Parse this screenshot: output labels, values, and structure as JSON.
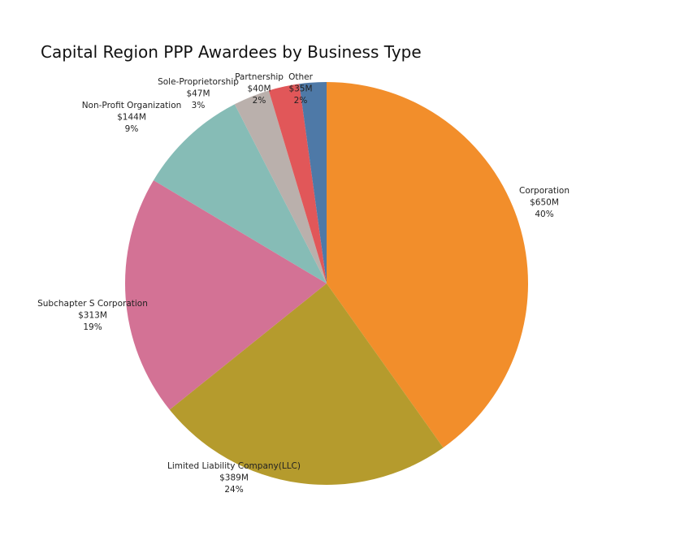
{
  "chart_data": {
    "type": "pie",
    "title": "Capital Region PPP Awardees by Business Type",
    "slices": [
      {
        "name": "Corporation",
        "amount": "$650M",
        "pct_label": "40%",
        "value": 650,
        "color": "#f28e2b"
      },
      {
        "name": "Limited  Liability Company(LLC)",
        "amount": "$389M",
        "pct_label": "24%",
        "value": 389,
        "color": "#b59b2d"
      },
      {
        "name": "Subchapter S Corporation",
        "amount": "$313M",
        "pct_label": "19%",
        "value": 313,
        "color": "#d37295"
      },
      {
        "name": "Non-Profit Organization",
        "amount": "$144M",
        "pct_label": "9%",
        "value": 144,
        "color": "#86bcb6"
      },
      {
        "name": "Sole-Proprietorship",
        "amount": "$47M",
        "pct_label": "3%",
        "value": 47,
        "color": "#bab0ac"
      },
      {
        "name": "Partnership",
        "amount": "$40M",
        "pct_label": "2%",
        "value": 40,
        "color": "#e15759"
      },
      {
        "name": "Other",
        "amount": "$35M",
        "pct_label": "2%",
        "value": 35,
        "color": "#4e79a7"
      }
    ]
  }
}
